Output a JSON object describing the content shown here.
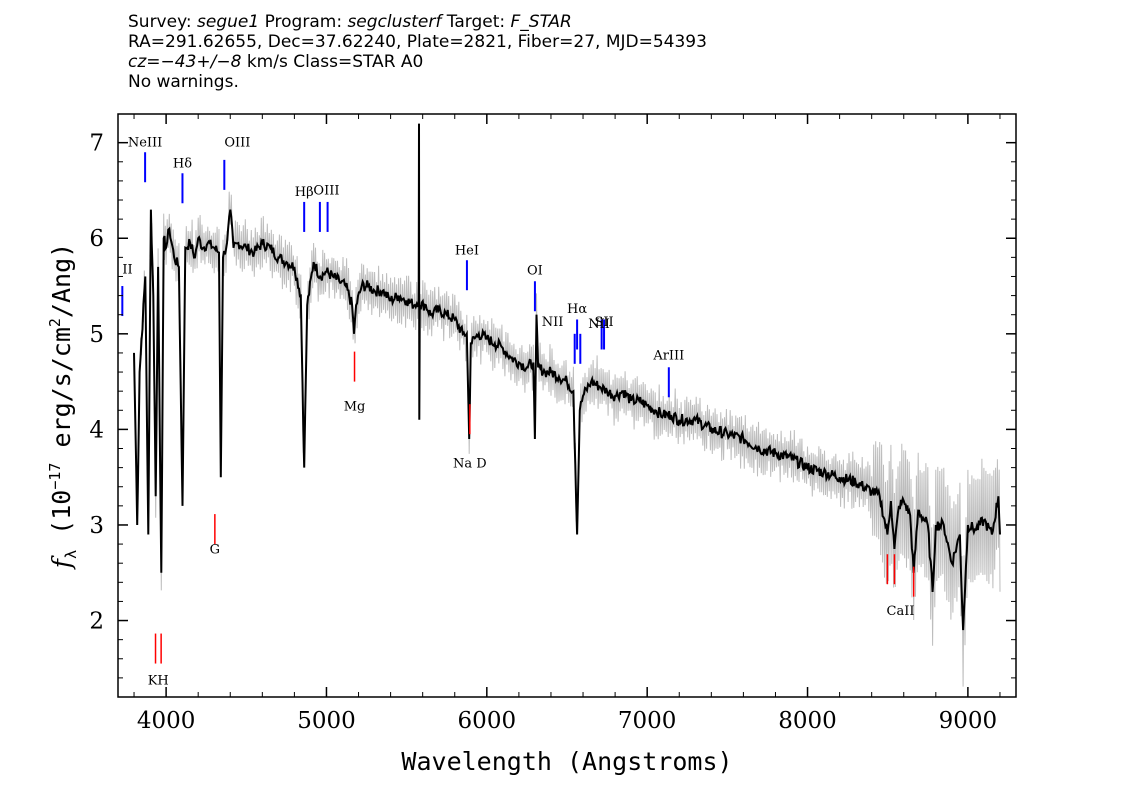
{
  "header": {
    "line1": {
      "survey_label": "Survey: ",
      "survey": "segue1",
      "program_label": " Program: ",
      "program": "segclusterf",
      "target_label": " Target: ",
      "target": "F_STAR"
    },
    "line2": "RA=291.62655, Dec=37.62240, Plate=2821, Fiber=27, MJD=54393",
    "line3": {
      "cz": "cz=",
      "value": "−43+/−8",
      "rest": " km/s Class=STAR A0"
    },
    "line4": "No warnings."
  },
  "chart_data": {
    "type": "line",
    "xlabel": "Wavelength (Angstroms)",
    "ylabel_prefix": "f",
    "ylabel_sub": "λ",
    "ylabel_unit_a": " (10",
    "ylabel_unit_exp": "−17",
    "ylabel_unit_b": " erg/s/cm",
    "ylabel_unit_exp2": "2",
    "ylabel_unit_c": "/Ang)",
    "xlim": [
      3700,
      9300
    ],
    "ylim": [
      1.2,
      7.3
    ],
    "x_ticks": [
      4000,
      5000,
      6000,
      7000,
      8000,
      9000
    ],
    "x_tick_labels": [
      "4000",
      "5000",
      "6000",
      "7000",
      "8000",
      "9000"
    ],
    "y_ticks": [
      2,
      3,
      4,
      5,
      6,
      7
    ],
    "y_tick_labels": [
      "2",
      "3",
      "4",
      "5",
      "6",
      "7"
    ],
    "series": [
      {
        "color": "#000000",
        "points": [
          [
            3800,
            4.8
          ],
          [
            3820,
            3.0
          ],
          [
            3835,
            4.6
          ],
          [
            3870,
            5.6
          ],
          [
            3889,
            2.9
          ],
          [
            3905,
            6.3
          ],
          [
            3920,
            5.4
          ],
          [
            3935,
            3.3
          ],
          [
            3950,
            5.7
          ],
          [
            3970,
            2.5
          ],
          [
            3985,
            6.0
          ],
          [
            4000,
            5.9
          ],
          [
            4020,
            6.1
          ],
          [
            4050,
            5.8
          ],
          [
            4080,
            5.7
          ],
          [
            4102,
            3.2
          ],
          [
            4120,
            5.9
          ],
          [
            4150,
            5.95
          ],
          [
            4180,
            5.8
          ],
          [
            4200,
            6.0
          ],
          [
            4230,
            5.9
          ],
          [
            4260,
            5.95
          ],
          [
            4300,
            5.9
          ],
          [
            4330,
            5.85
          ],
          [
            4341,
            3.5
          ],
          [
            4355,
            5.8
          ],
          [
            4380,
            5.95
          ],
          [
            4400,
            6.3
          ],
          [
            4420,
            5.9
          ],
          [
            4450,
            5.95
          ],
          [
            4500,
            5.9
          ],
          [
            4550,
            5.85
          ],
          [
            4600,
            5.95
          ],
          [
            4650,
            5.9
          ],
          [
            4700,
            5.8
          ],
          [
            4750,
            5.75
          ],
          [
            4800,
            5.7
          ],
          [
            4840,
            5.4
          ],
          [
            4861,
            3.6
          ],
          [
            4880,
            5.3
          ],
          [
            4920,
            5.75
          ],
          [
            4960,
            5.6
          ],
          [
            5000,
            5.65
          ],
          [
            5040,
            5.6
          ],
          [
            5080,
            5.55
          ],
          [
            5120,
            5.5
          ],
          [
            5160,
            5.3
          ],
          [
            5172,
            5.0
          ],
          [
            5185,
            5.3
          ],
          [
            5220,
            5.5
          ],
          [
            5260,
            5.5
          ],
          [
            5300,
            5.45
          ],
          [
            5350,
            5.45
          ],
          [
            5400,
            5.35
          ],
          [
            5450,
            5.4
          ],
          [
            5500,
            5.35
          ],
          [
            5550,
            5.3
          ],
          [
            5575,
            5.35
          ],
          [
            5577,
            7.2
          ],
          [
            5579,
            4.1
          ],
          [
            5582,
            5.3
          ],
          [
            5620,
            5.3
          ],
          [
            5650,
            5.2
          ],
          [
            5700,
            5.25
          ],
          [
            5750,
            5.2
          ],
          [
            5800,
            5.15
          ],
          [
            5850,
            5.0
          ],
          [
            5875,
            5.0
          ],
          [
            5890,
            3.9
          ],
          [
            5900,
            4.9
          ],
          [
            5950,
            5.0
          ],
          [
            6000,
            4.95
          ],
          [
            6050,
            4.9
          ],
          [
            6100,
            4.85
          ],
          [
            6150,
            4.75
          ],
          [
            6200,
            4.7
          ],
          [
            6250,
            4.65
          ],
          [
            6290,
            4.7
          ],
          [
            6300,
            3.9
          ],
          [
            6310,
            5.2
          ],
          [
            6320,
            4.65
          ],
          [
            6363,
            4.6
          ],
          [
            6400,
            4.6
          ],
          [
            6450,
            4.55
          ],
          [
            6500,
            4.5
          ],
          [
            6540,
            4.4
          ],
          [
            6563,
            2.9
          ],
          [
            6580,
            4.2
          ],
          [
            6600,
            4.35
          ],
          [
            6650,
            4.5
          ],
          [
            6700,
            4.45
          ],
          [
            6750,
            4.4
          ],
          [
            6800,
            4.35
          ],
          [
            6850,
            4.4
          ],
          [
            6900,
            4.3
          ],
          [
            6950,
            4.3
          ],
          [
            7000,
            4.25
          ],
          [
            7050,
            4.2
          ],
          [
            7100,
            4.15
          ],
          [
            7150,
            4.15
          ],
          [
            7200,
            4.1
          ],
          [
            7300,
            4.1
          ],
          [
            7400,
            4.0
          ],
          [
            7500,
            3.95
          ],
          [
            7600,
            3.9
          ],
          [
            7700,
            3.8
          ],
          [
            7800,
            3.75
          ],
          [
            7900,
            3.7
          ],
          [
            8000,
            3.6
          ],
          [
            8100,
            3.55
          ],
          [
            8200,
            3.5
          ],
          [
            8300,
            3.45
          ],
          [
            8400,
            3.35
          ],
          [
            8450,
            3.3
          ],
          [
            8498,
            2.9
          ],
          [
            8520,
            3.25
          ],
          [
            8542,
            2.75
          ],
          [
            8570,
            3.2
          ],
          [
            8600,
            3.25
          ],
          [
            8640,
            3.1
          ],
          [
            8662,
            2.5
          ],
          [
            8690,
            3.15
          ],
          [
            8750,
            3.0
          ],
          [
            8780,
            2.3
          ],
          [
            8800,
            3.0
          ],
          [
            8850,
            3.0
          ],
          [
            8900,
            2.6
          ],
          [
            8950,
            2.9
          ],
          [
            8970,
            1.9
          ],
          [
            9000,
            3.0
          ],
          [
            9050,
            2.95
          ],
          [
            9100,
            3.05
          ],
          [
            9150,
            2.9
          ],
          [
            9190,
            3.3
          ],
          [
            9200,
            2.9
          ]
        ]
      }
    ],
    "emission_lines": [
      {
        "label": "NeIII",
        "x": 3869,
        "y": 6.9
      },
      {
        "label": "Hδ",
        "x": 4102,
        "y": 6.68
      },
      {
        "label": "OIII",
        "x": 4363,
        "y": 6.82
      },
      {
        "label": "Hβ",
        "x": 4861,
        "y": 6.38
      },
      {
        "label": "OIII",
        "x": 4959,
        "y": 6.38
      },
      {
        "label": "OIII",
        "x": 5007,
        "y": 6.38
      },
      {
        "label": "HeI",
        "x": 5876,
        "y": 5.77
      },
      {
        "label": "OI",
        "x": 6300,
        "y": 5.55
      },
      {
        "label": "Hα",
        "x": 6563,
        "y": 5.15
      },
      {
        "label": "NII",
        "x": 6548,
        "y": 5.0
      },
      {
        "label": "NII",
        "x": 6583,
        "y": 5.0
      },
      {
        "label": "SII",
        "x": 6716,
        "y": 5.15
      },
      {
        "label": "SII",
        "x": 6731,
        "y": 5.15
      },
      {
        "label": "ArIII",
        "x": 7135,
        "y": 4.65
      },
      {
        "label": "II",
        "x": 3727,
        "y": 5.5
      }
    ],
    "absorption_lines": [
      {
        "label": "K",
        "x": 3934,
        "y": 1.55
      },
      {
        "label": "H",
        "x": 3969,
        "y": 1.55
      },
      {
        "label": "G",
        "x": 4304,
        "y": 2.8
      },
      {
        "label": "Mg",
        "x": 5175,
        "y": 4.5
      },
      {
        "label": "Na D",
        "x": 5894,
        "y": 3.95
      },
      {
        "label": "CaII",
        "x": 8498,
        "y": 2.38
      },
      {
        "label": "CaII",
        "x": 8542,
        "y": 2.38
      },
      {
        "label": "CaII",
        "x": 8662,
        "y": 2.25
      }
    ],
    "line_label_text": {
      "neiii": "NeIII",
      "hdelta": "Hδ",
      "oiii": "OIII",
      "hbeta": "Hβ",
      "hei": "HeI",
      "oi": "OI",
      "halpha": "Hα",
      "nii": "NII",
      "sii": "SII",
      "ariii": "ArIII",
      "oii_partial": "II",
      "kh": "KH",
      "g": "G",
      "mg": "Mg",
      "nad": "Na D",
      "caii": "CaII"
    },
    "colors": {
      "spectrum": "#000000",
      "noise": "#bdbdbd",
      "emission": "#0000ff",
      "absorption": "#ff0000"
    }
  }
}
